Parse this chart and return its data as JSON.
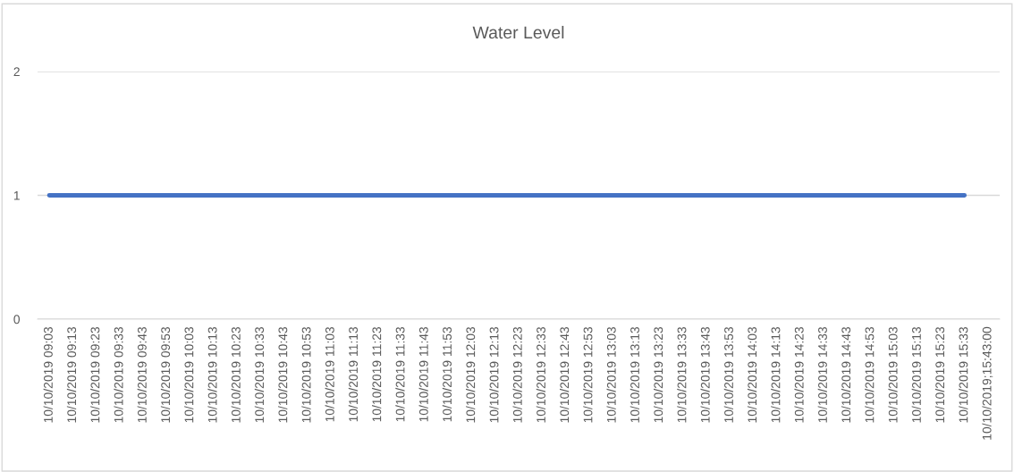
{
  "chart_data": {
    "type": "line",
    "title": "Water Level",
    "categories": [
      "10/10/2019 09:03",
      "10/10/2019 09:13",
      "10/10/2019 09:23",
      "10/10/2019 09:33",
      "10/10/2019 09:43",
      "10/10/2019 09:53",
      "10/10/2019 10:03",
      "10/10/2019 10:13",
      "10/10/2019 10:23",
      "10/10/2019 10:33",
      "10/10/2019 10:43",
      "10/10/2019 10:53",
      "10/10/2019 11:03",
      "10/10/2019 11:13",
      "10/10/2019 11:23",
      "10/10/2019 11:33",
      "10/10/2019 11:43",
      "10/10/2019 11:53",
      "10/10/2019 12:03",
      "10/10/2019 12:13",
      "10/10/2019 12:23",
      "10/10/2019 12:33",
      "10/10/2019 12:43",
      "10/10/2019 12:53",
      "10/10/2019 13:03",
      "10/10/2019 13:13",
      "10/10/2019 13:23",
      "10/10/2019 13:33",
      "10/10/2019 13:43",
      "10/10/2019 13:53",
      "10/10/2019 14:03",
      "10/10/2019 14:13",
      "10/10/2019 14:23",
      "10/10/2019 14:33",
      "10/10/2019 14:43",
      "10/10/2019 14:53",
      "10/10/2019 15:03",
      "10/10/2019 15:13",
      "10/10/2019 15:23",
      "10/10/2019 15:33",
      "10/10/2019;15:43:00"
    ],
    "series": [
      {
        "color": "#4472c4",
        "values": [
          1,
          1,
          1,
          1,
          1,
          1,
          1,
          1,
          1,
          1,
          1,
          1,
          1,
          1,
          1,
          1,
          1,
          1,
          1,
          1,
          1,
          1,
          1,
          1,
          1,
          1,
          1,
          1,
          1,
          1,
          1,
          1,
          1,
          1,
          1,
          1,
          1,
          1,
          1,
          1,
          null
        ]
      }
    ],
    "ylim": [
      0,
      2
    ],
    "yticks": [
      0,
      1,
      2
    ],
    "grid": "y",
    "legend": false,
    "marker": "none",
    "line_style": "solid"
  }
}
